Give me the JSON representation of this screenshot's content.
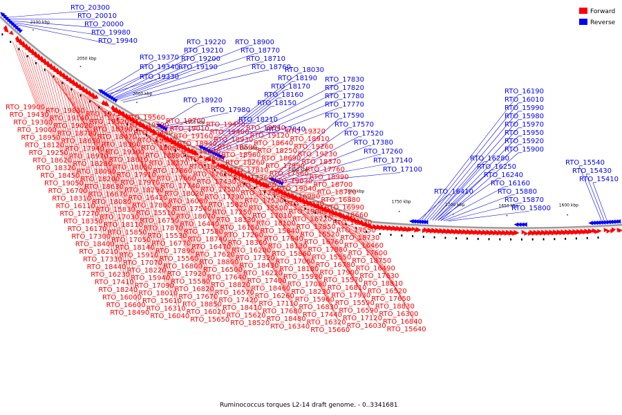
{
  "caption": "Ruminococcus torques L2-14 draft genome. - 0..3341681",
  "legend": [
    {
      "label": "Forward",
      "color": "#ff0000"
    },
    {
      "label": "Reverse",
      "color": "#0000ff"
    }
  ],
  "ticks": [
    "2100 kbp",
    "2050 kbp",
    "2000 kbp",
    "1950 kbp",
    "1900 kbp",
    "1850 kbp",
    "1800 kbp",
    "1750 kbp",
    "1700 kbp",
    "1650 kbp",
    "1600 kbp"
  ],
  "reverse_labels": [
    "RTO_20300",
    "RTO_20010",
    "RTO_20000",
    "RTO_19980",
    "RTO_19940",
    "RTO_19370",
    "RTO_19340",
    "RTO_19330",
    "RTO_19220",
    "RTO_19210",
    "RTO_19200",
    "RTO_19190",
    "RTO_18900",
    "RTO_18770",
    "RTO_18710",
    "RTO_18760",
    "RTO_18030",
    "RTO_18190",
    "RTO_18170",
    "RTO_18160",
    "RTO_18150",
    "RTO_17830",
    "RTO_17820",
    "RTO_17780",
    "RTO_17770",
    "RTO_18920",
    "RTO_17980",
    "RTO_18210",
    "RTO_17840",
    "RTO_17590",
    "RTO_17570",
    "RTO_17520",
    "RTO_17380",
    "RTO_17260",
    "RTO_17140",
    "RTO_17100",
    "RTO_16410",
    "RTO_16190",
    "RTO_16010",
    "RTO_15990",
    "RTO_15980",
    "RTO_15970",
    "RTO_15950",
    "RTO_15920",
    "RTO_15900",
    "RTO_16280",
    "RTO_16250",
    "RTO_16240",
    "RTO_16160",
    "RTO_15880",
    "RTO_15870",
    "RTO_15800",
    "RTO_15540",
    "RTO_15430",
    "RTO_15410"
  ],
  "forward_labels": [
    "RTO_19900",
    "RTO_19830",
    "RTO_19710",
    "RTO_19560",
    "RTO_19700",
    "RTO_19450",
    "RTO_19540",
    "RTO_19320",
    "RTO_19430",
    "RTO_19140",
    "RTO_19520",
    "RTO_19290",
    "RTO_19010",
    "RTO_19400",
    "RTO_19120",
    "RTO_18910",
    "RTO_19300",
    "RTO_19020",
    "RTO_18790",
    "RTO_19440",
    "RTO_19160",
    "RTO_18930",
    "RTO_18640",
    "RTO_19260",
    "RTO_19000",
    "RTO_18780",
    "RTO_18470",
    "RTO_19180",
    "RTO_18940",
    "RTO_18590",
    "RTO_18250",
    "RTO_19230",
    "RTO_18950",
    "RTO_18650",
    "RTO_18300",
    "RTO_18060",
    "RTO_19240",
    "RTO_18960",
    "RTO_18690",
    "RTO_18370",
    "RTO_18120",
    "RTO_17940",
    "RTO_19100",
    "RTO_18890",
    "RTO_18600",
    "RTO_18260",
    "RTO_17990",
    "RTO_17760",
    "RTO_19250",
    "RTO_18970",
    "RTO_18610",
    "RTO_18270",
    "RTO_18040",
    "RTO_17810",
    "RTO_17560",
    "RTO_18990",
    "RTO_18620",
    "RTO_18280",
    "RTO_18050",
    "RTO_17860",
    "RTO_17610",
    "RTO_17360",
    "RTO_19030",
    "RTO_18700",
    "RTO_18320",
    "RTO_18090",
    "RTO_17910",
    "RTO_17660",
    "RTO_17430",
    "RTO_17160",
    "RTO_19040",
    "RTO_18720",
    "RTO_18450",
    "RTO_18200",
    "RTO_17970",
    "RTO_17740",
    "RTO_17500",
    "RTO_17230",
    "RTO_16980",
    "RTO_16880",
    "RTO_19050",
    "RTO_18630",
    "RTO_18290",
    "RTO_18020",
    "RTO_17790",
    "RTO_17530",
    "RTO_17240",
    "RTO_16990",
    "RTO_16700",
    "RTO_16670",
    "RTO_16420",
    "RTO_16080",
    "RTO_15820",
    "RTO_15500",
    "RTO_19060",
    "RTO_18660",
    "RTO_18310",
    "RTO_18080",
    "RTO_17800",
    "RTO_17540",
    "RTO_17250",
    "RTO_17010",
    "RTO_16720",
    "RTO_16430",
    "RTO_16110",
    "RTO_15830",
    "RTO_15510",
    "RTO_18670",
    "RTO_18330",
    "RTO_18100",
    "RTO_17850",
    "RTO_17550",
    "RTO_17270",
    "RTO_17030",
    "RTO_16750",
    "RTO_16440",
    "RTO_16150",
    "RTO_15840",
    "RTO_15520",
    "RTO_18730",
    "RTO_18350",
    "RTO_18110",
    "RTO_17870",
    "RTO_17580",
    "RTO_17290",
    "RTO_17040",
    "RTO_16760",
    "RTO_16460",
    "RTO_16170",
    "RTO_15850",
    "RTO_15530",
    "RTO_18740",
    "RTO_18360",
    "RTO_18130",
    "RTO_17880",
    "RTO_17600",
    "RTO_17300",
    "RTO_17050",
    "RTO_16770",
    "RTO_16470",
    "RTO_16200",
    "RTO_15860",
    "RTO_15550",
    "RTO_18750",
    "RTO_18400",
    "RTO_18140",
    "RTO_17890",
    "RTO_17620",
    "RTO_17320",
    "RTO_17060",
    "RTO_16780",
    "RTO_16490",
    "RTO_16210",
    "RTO_15910",
    "RTO_15560",
    "RTO_18800",
    "RTO_18430",
    "RTO_18180",
    "RTO_17900",
    "RTO_17630",
    "RTO_17330",
    "RTO_17070",
    "RTO_16800",
    "RTO_16500",
    "RTO_16220",
    "RTO_15930",
    "RTO_15570",
    "RTO_18810",
    "RTO_18440",
    "RTO_18220",
    "RTO_17920",
    "RTO_17640",
    "RTO_17400",
    "RTO_17080",
    "RTO_16810",
    "RTO_16520",
    "RTO_16230",
    "RTO_15940",
    "RTO_15580",
    "RTO_18820",
    "RTO_18460",
    "RTO_18230",
    "RTO_17930",
    "RTO_17650",
    "RTO_17410",
    "RTO_17090",
    "RTO_16820",
    "RTO_16570",
    "RTO_16260",
    "RTO_15960",
    "RTO_15590",
    "RTO_18830",
    "RTO_18240",
    "RTO_18010",
    "RTO_17670",
    "RTO_17420",
    "RTO_17110",
    "RTO_16830",
    "RTO_16590",
    "RTO_16300",
    "RTO_16000",
    "RTO_15610",
    "RTO_18850",
    "RTO_18410",
    "RTO_17680",
    "RTO_17440",
    "RTO_17120",
    "RTO_16840",
    "RTO_16600",
    "RTO_16310",
    "RTO_16020",
    "RTO_15620",
    "RTO_18480",
    "RTO_16320",
    "RTO_16030",
    "RTO_15640",
    "RTO_18490",
    "RTO_16040",
    "RTO_15650",
    "RTO_18520",
    "RTO_16340",
    "RTO_15660"
  ]
}
